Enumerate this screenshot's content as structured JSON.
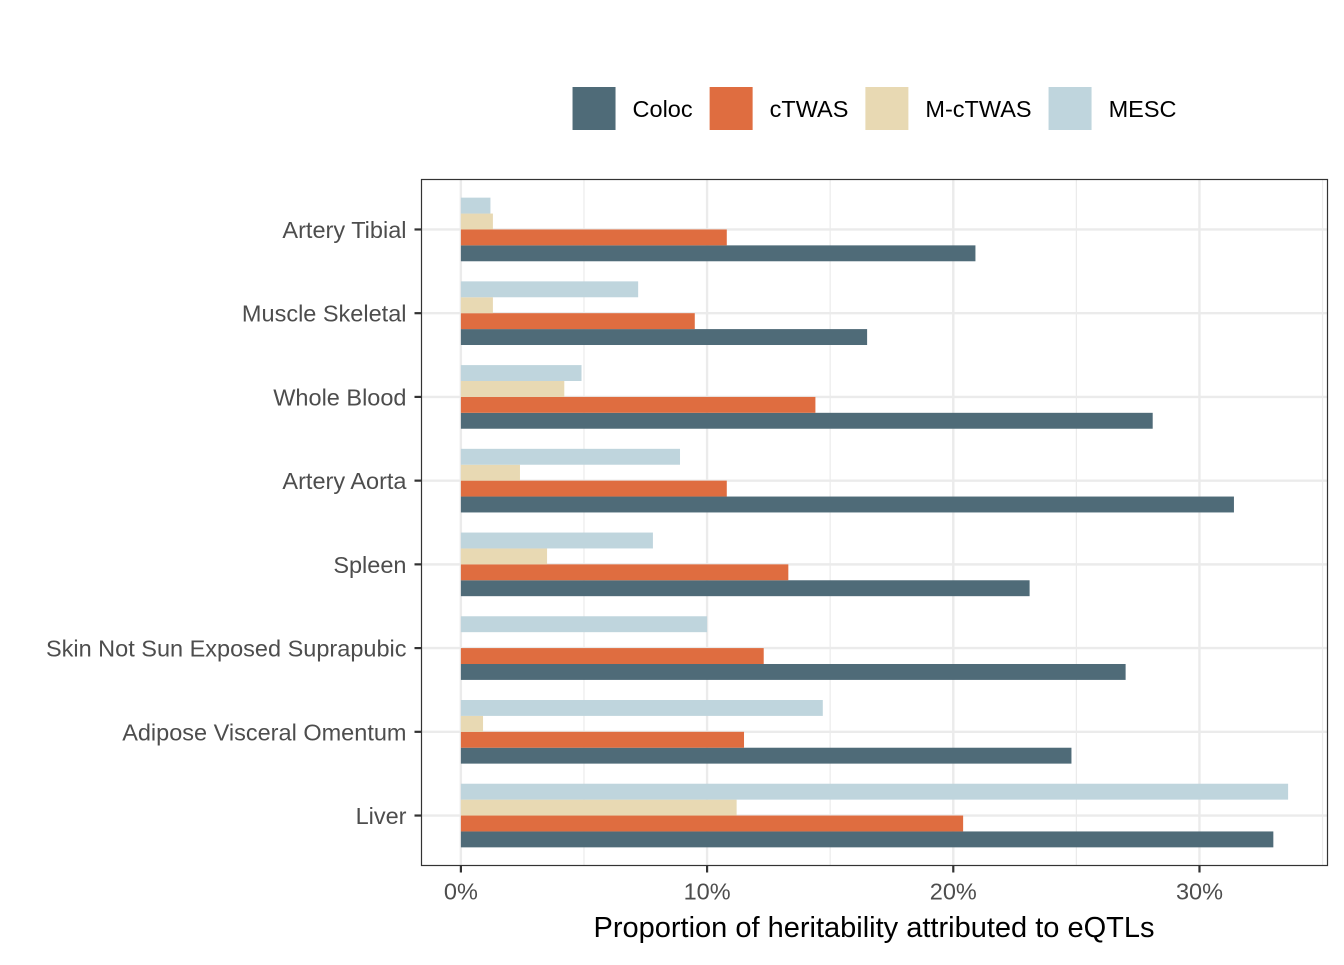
{
  "chart_data": {
    "type": "bar",
    "orientation": "horizontal",
    "xlabel": "Proportion of heritability attributed to eQTLs",
    "ylabel": "",
    "xlim": [
      -0.016,
      0.352
    ],
    "x_ticks": [
      0,
      0.1,
      0.2,
      0.3
    ],
    "x_tick_labels": [
      "0%",
      "10%",
      "20%",
      "30%"
    ],
    "grid": true,
    "legend_position": "top",
    "categories": [
      "Artery Tibial",
      "Muscle Skeletal",
      "Whole Blood",
      "Artery Aorta",
      "Spleen",
      "Skin Not Sun Exposed Suprapubic",
      "Adipose Visceral Omentum",
      "Liver"
    ],
    "series": [
      {
        "name": "Coloc",
        "color": "#4f6b78",
        "values": [
          0.209,
          0.165,
          0.281,
          0.314,
          0.231,
          0.27,
          0.248,
          0.33
        ]
      },
      {
        "name": "cTWAS",
        "color": "#df6d40",
        "values": [
          0.108,
          0.095,
          0.144,
          0.108,
          0.133,
          0.123,
          0.115,
          0.204
        ]
      },
      {
        "name": "M-cTWAS",
        "color": "#e8d9b3",
        "values": [
          0.013,
          0.013,
          0.042,
          0.024,
          0.035,
          0.0,
          0.009,
          0.112
        ]
      },
      {
        "name": "MESC",
        "color": "#bfd5dd",
        "values": [
          0.012,
          0.072,
          0.049,
          0.089,
          0.078,
          0.1,
          0.147,
          0.336
        ]
      }
    ]
  }
}
